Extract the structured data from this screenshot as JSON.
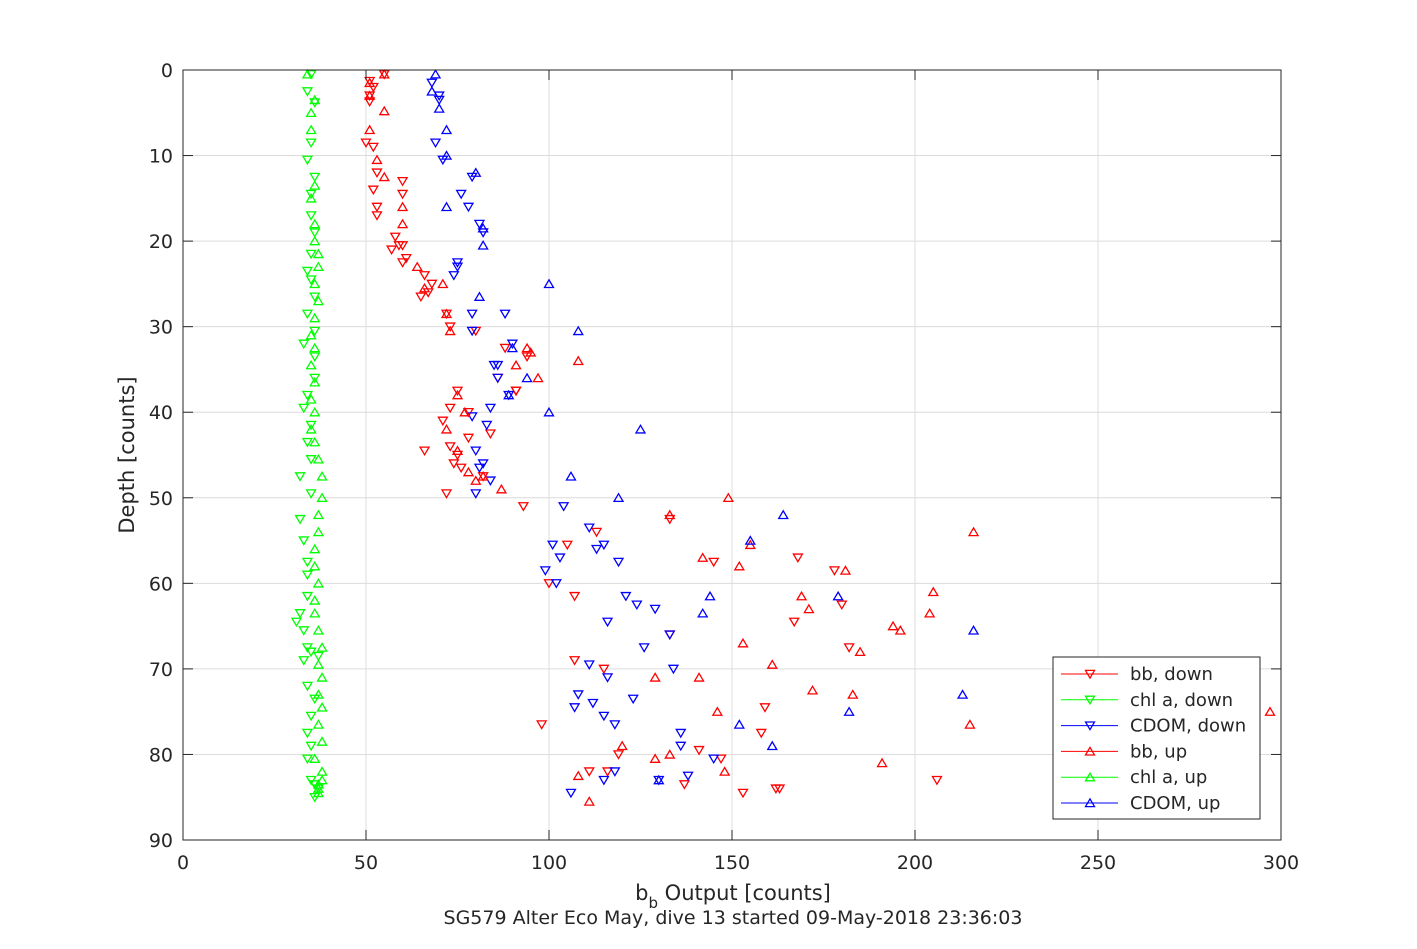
{
  "chart_data": {
    "type": "scatter",
    "xlabel_main": "b",
    "xlabel_sub": "b",
    "xlabel_rest": " Output [counts]",
    "ylabel": "Depth [counts]",
    "caption": "SG579 Alter Eco May, dive 13 started 09-May-2018 23:36:03",
    "xlim": [
      0,
      300
    ],
    "ylim": [
      0,
      90
    ],
    "y_reversed": true,
    "grid": true,
    "legend_position": "bottom-right",
    "x_ticks": [
      0,
      50,
      100,
      150,
      200,
      250,
      300
    ],
    "x_tick_labels": [
      "0",
      "50",
      "100",
      "150",
      "200",
      "250",
      "300"
    ],
    "y_ticks": [
      0,
      10,
      20,
      30,
      40,
      50,
      60,
      70,
      80,
      90
    ],
    "y_tick_labels": [
      "0",
      "10",
      "20",
      "30",
      "40",
      "50",
      "60",
      "70",
      "80",
      "90"
    ],
    "series": [
      {
        "name": "bb, down",
        "color": "#ff0000",
        "marker": "triangle-down",
        "x": [
          55,
          51,
          52,
          51,
          51,
          50,
          52,
          60,
          60,
          53,
          52,
          53,
          53,
          58,
          60,
          61,
          59,
          57,
          60,
          66,
          65,
          68,
          67,
          72,
          73,
          80,
          88,
          94,
          91,
          86,
          91,
          75,
          73,
          78,
          71,
          78,
          75,
          73,
          74,
          66,
          84,
          82,
          72,
          76,
          93,
          113,
          133,
          105,
          145,
          168,
          178,
          180,
          100,
          107,
          167,
          133,
          182,
          107,
          159,
          115,
          158,
          98,
          162,
          147,
          119,
          111,
          141,
          116,
          153,
          163,
          137,
          206
        ],
        "y": [
          0.5,
          1.3,
          2.0,
          3.0,
          3.7,
          8.5,
          9.0,
          13.0,
          14.5,
          12.0,
          14.0,
          16.0,
          17.0,
          19.5,
          20.5,
          22.0,
          20.5,
          21.0,
          22.5,
          24.0,
          26.5,
          25.0,
          26.0,
          28.5,
          30.0,
          30.5,
          32.5,
          33.5,
          37.5,
          36.0,
          37.5,
          37.5,
          39.5,
          40.0,
          41.0,
          43.0,
          45.0,
          44.0,
          46.0,
          44.5,
          42.5,
          47.5,
          49.5,
          46.5,
          51.0,
          54.0,
          52.5,
          55.5,
          57.5,
          57.0,
          58.5,
          62.5,
          60.0,
          61.5,
          64.5,
          66.0,
          67.5,
          69.0,
          74.5,
          70.0,
          77.5,
          76.5,
          84.0,
          80.5,
          80.0,
          82.0,
          79.5,
          82.0,
          84.5,
          84.0,
          83.5,
          83.0
        ]
      },
      {
        "name": "chl a, down",
        "color": "#00ff00",
        "marker": "triangle-down",
        "x": [
          35,
          34,
          36,
          35,
          34,
          36,
          35,
          35,
          36,
          35,
          34,
          35,
          36,
          34,
          36,
          33,
          36,
          36,
          34,
          33,
          35,
          34,
          35,
          32,
          35,
          32,
          33,
          34,
          34,
          34,
          32,
          33,
          34,
          31,
          35,
          37,
          33,
          34,
          36,
          35,
          34,
          35,
          34,
          35,
          36,
          37,
          36
        ],
        "y": [
          0.5,
          2.5,
          3.8,
          8.5,
          10.5,
          12.5,
          14.5,
          17.0,
          19.0,
          21.5,
          23.5,
          24.5,
          26.5,
          28.5,
          30.5,
          32.0,
          33.5,
          36.0,
          38.0,
          39.5,
          41.5,
          43.5,
          45.5,
          47.5,
          49.5,
          52.5,
          55.0,
          57.5,
          59.0,
          61.5,
          63.5,
          65.5,
          67.5,
          64.5,
          68.0,
          68.5,
          69.0,
          72.0,
          73.5,
          75.5,
          77.5,
          79.0,
          80.5,
          83.0,
          83.5,
          84.0,
          85.0
        ]
      },
      {
        "name": "CDOM, down",
        "color": "#0000ff",
        "marker": "triangle-down",
        "x": [
          68,
          70,
          70,
          69,
          71,
          79,
          76,
          78,
          81,
          82,
          75,
          75,
          74,
          79,
          88,
          79,
          90,
          86,
          85,
          86,
          89,
          84,
          79,
          83,
          80,
          82,
          80,
          84,
          81,
          104,
          111,
          113,
          115,
          119,
          124,
          116,
          129,
          133,
          126,
          134,
          116,
          111,
          108,
          115,
          118,
          107,
          112,
          123,
          101,
          103,
          99,
          102,
          121,
          136,
          136,
          145,
          118,
          115,
          138,
          130,
          106
        ],
        "y": [
          1.5,
          3.0,
          3.5,
          8.5,
          10.5,
          12.5,
          14.5,
          16.0,
          18.0,
          19.0,
          22.5,
          23.0,
          24.0,
          28.5,
          28.5,
          30.5,
          32.0,
          34.5,
          34.5,
          36.0,
          38.0,
          39.5,
          40.5,
          41.5,
          44.5,
          46.0,
          49.5,
          48.0,
          46.5,
          51.0,
          53.5,
          56.0,
          55.5,
          57.5,
          62.5,
          64.5,
          63.0,
          66.0,
          67.5,
          70.0,
          71.0,
          69.5,
          73.0,
          75.5,
          76.5,
          74.5,
          74.0,
          73.5,
          55.5,
          57.0,
          58.5,
          60.0,
          61.5,
          77.5,
          79.0,
          80.5,
          82.0,
          83.0,
          82.5,
          83.0,
          84.5
        ]
      },
      {
        "name": "bb, up",
        "color": "#ff0000",
        "marker": "triangle-up",
        "x": [
          55,
          51,
          51,
          55,
          51,
          53,
          55,
          60,
          60,
          64,
          66,
          71,
          72,
          73,
          75,
          77,
          72,
          75,
          78,
          80,
          82,
          87,
          94,
          97,
          95,
          91,
          108,
          149,
          133,
          142,
          155,
          152,
          169,
          171,
          181,
          196,
          204,
          216,
          215,
          183,
          185,
          194,
          205,
          191,
          172,
          161,
          153,
          146,
          141,
          129,
          133,
          120,
          108,
          148,
          111,
          129,
          297
        ],
        "y": [
          0.5,
          1.5,
          3.0,
          4.8,
          7.0,
          10.5,
          12.5,
          16.0,
          18.0,
          23.0,
          25.5,
          25.0,
          28.5,
          30.5,
          38.0,
          40.0,
          42.0,
          44.5,
          47.0,
          48.0,
          47.5,
          49.0,
          32.5,
          36.0,
          33.0,
          34.5,
          34.0,
          50.0,
          52.0,
          57.0,
          55.5,
          58.0,
          61.5,
          63.0,
          58.5,
          65.5,
          63.5,
          54.0,
          76.5,
          73.0,
          68.0,
          65.0,
          61.0,
          81.0,
          72.5,
          69.5,
          67.0,
          75.0,
          71.0,
          71.0,
          80.0,
          79.0,
          82.5,
          82.0,
          85.5,
          80.5,
          75.0
        ]
      },
      {
        "name": "chl a, up",
        "color": "#00ff00",
        "marker": "triangle-up",
        "x": [
          34,
          36,
          35,
          35,
          36,
          35,
          36,
          36,
          37,
          37,
          36,
          37,
          36,
          35,
          36,
          35,
          36,
          35,
          36,
          35,
          36,
          37,
          38,
          38,
          37,
          37,
          36,
          36,
          37,
          36,
          36,
          37,
          38,
          37,
          38,
          37,
          38,
          37,
          38,
          36,
          38,
          38,
          37,
          37,
          37
        ],
        "y": [
          0.5,
          3.5,
          5.0,
          7.0,
          13.5,
          15.0,
          18.0,
          20.0,
          21.5,
          23.0,
          25.0,
          27.0,
          29.0,
          31.0,
          32.5,
          34.5,
          36.5,
          38.5,
          40.0,
          42.0,
          43.5,
          45.5,
          47.5,
          50.0,
          52.0,
          54.0,
          56.0,
          58.0,
          60.0,
          62.0,
          63.5,
          65.5,
          67.5,
          69.5,
          71.0,
          73.0,
          74.5,
          76.5,
          78.5,
          80.5,
          82.0,
          83.0,
          83.5,
          84.0,
          84.5
        ]
      },
      {
        "name": "CDOM, up",
        "color": "#0000ff",
        "marker": "triangle-up",
        "x": [
          69,
          68,
          70,
          72,
          72,
          80,
          72,
          82,
          82,
          100,
          81,
          108,
          90,
          94,
          89,
          100,
          125,
          106,
          119,
          164,
          179,
          144,
          142,
          155,
          216,
          213,
          161,
          182,
          152,
          130
        ],
        "y": [
          0.5,
          2.5,
          4.5,
          7.0,
          10.0,
          12.0,
          16.0,
          18.5,
          20.5,
          25.0,
          26.5,
          30.5,
          32.5,
          36.0,
          38.0,
          40.0,
          42.0,
          47.5,
          50.0,
          52.0,
          61.5,
          61.5,
          63.5,
          55.0,
          65.5,
          73.0,
          79.0,
          75.0,
          76.5,
          83.0
        ]
      }
    ]
  }
}
